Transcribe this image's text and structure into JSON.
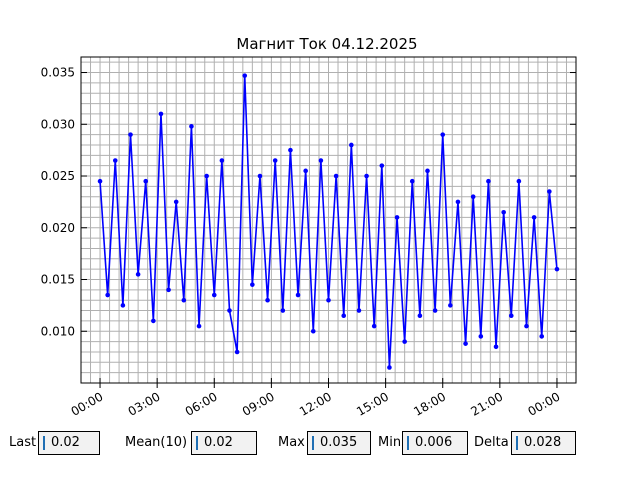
{
  "chart_data": {
    "type": "line",
    "title": "Магнит Ток 04.12.2025",
    "xlabel": "",
    "ylabel": "",
    "xlim_hours": [
      -1,
      25
    ],
    "ylim": [
      0.005,
      0.0365
    ],
    "grid": true,
    "x_tick_labels": [
      "00:00",
      "03:00",
      "06:00",
      "09:00",
      "12:00",
      "15:00",
      "18:00",
      "21:00",
      "00:00"
    ],
    "y_tick_labels": [
      "0.010",
      "0.015",
      "0.020",
      "0.025",
      "0.030",
      "0.035"
    ],
    "series": [
      {
        "color": "#0000ff",
        "marker": "dot",
        "x_hours": [
          0.0,
          0.4,
          0.8,
          1.2,
          1.6,
          2.0,
          2.4,
          2.8,
          3.2,
          3.6,
          4.0,
          4.4,
          4.8,
          5.2,
          5.6,
          6.0,
          6.4,
          6.8,
          7.2,
          7.6,
          8.0,
          8.4,
          8.8,
          9.2,
          9.6,
          10.0,
          10.4,
          10.8,
          11.2,
          11.6,
          12.0,
          12.4,
          12.8,
          13.2,
          13.6,
          14.0,
          14.4,
          14.8,
          15.2,
          15.6,
          16.0,
          16.4,
          16.8,
          17.2,
          17.6,
          18.0,
          18.4,
          18.8,
          19.2,
          19.6,
          20.0,
          20.4,
          20.8,
          21.2,
          21.6,
          22.0,
          22.4,
          22.8,
          23.2,
          23.6,
          24.0
        ],
        "values": [
          0.0245,
          0.0135,
          0.0265,
          0.0125,
          0.029,
          0.0155,
          0.0245,
          0.011,
          0.031,
          0.014,
          0.0225,
          0.013,
          0.0298,
          0.0105,
          0.025,
          0.0135,
          0.0265,
          0.012,
          0.008,
          0.0347,
          0.0145,
          0.025,
          0.013,
          0.0265,
          0.012,
          0.0275,
          0.0135,
          0.0255,
          0.01,
          0.0265,
          0.013,
          0.025,
          0.0115,
          0.028,
          0.012,
          0.025,
          0.0105,
          0.026,
          0.0065,
          0.021,
          0.009,
          0.0245,
          0.0115,
          0.0255,
          0.012,
          0.029,
          0.0125,
          0.0225,
          0.0088,
          0.023,
          0.0095,
          0.0245,
          0.0085,
          0.0215,
          0.0115,
          0.0245,
          0.0105,
          0.021,
          0.0095,
          0.0235,
          0.016
        ]
      }
    ]
  },
  "stats": [
    {
      "label": "Last",
      "value": "0.02"
    },
    {
      "label": "Mean(10)",
      "value": "0.02"
    },
    {
      "label": "Max",
      "value": "0.035"
    },
    {
      "label": "Min",
      "value": "0.006"
    },
    {
      "label": "Delta",
      "value": "0.028"
    }
  ]
}
